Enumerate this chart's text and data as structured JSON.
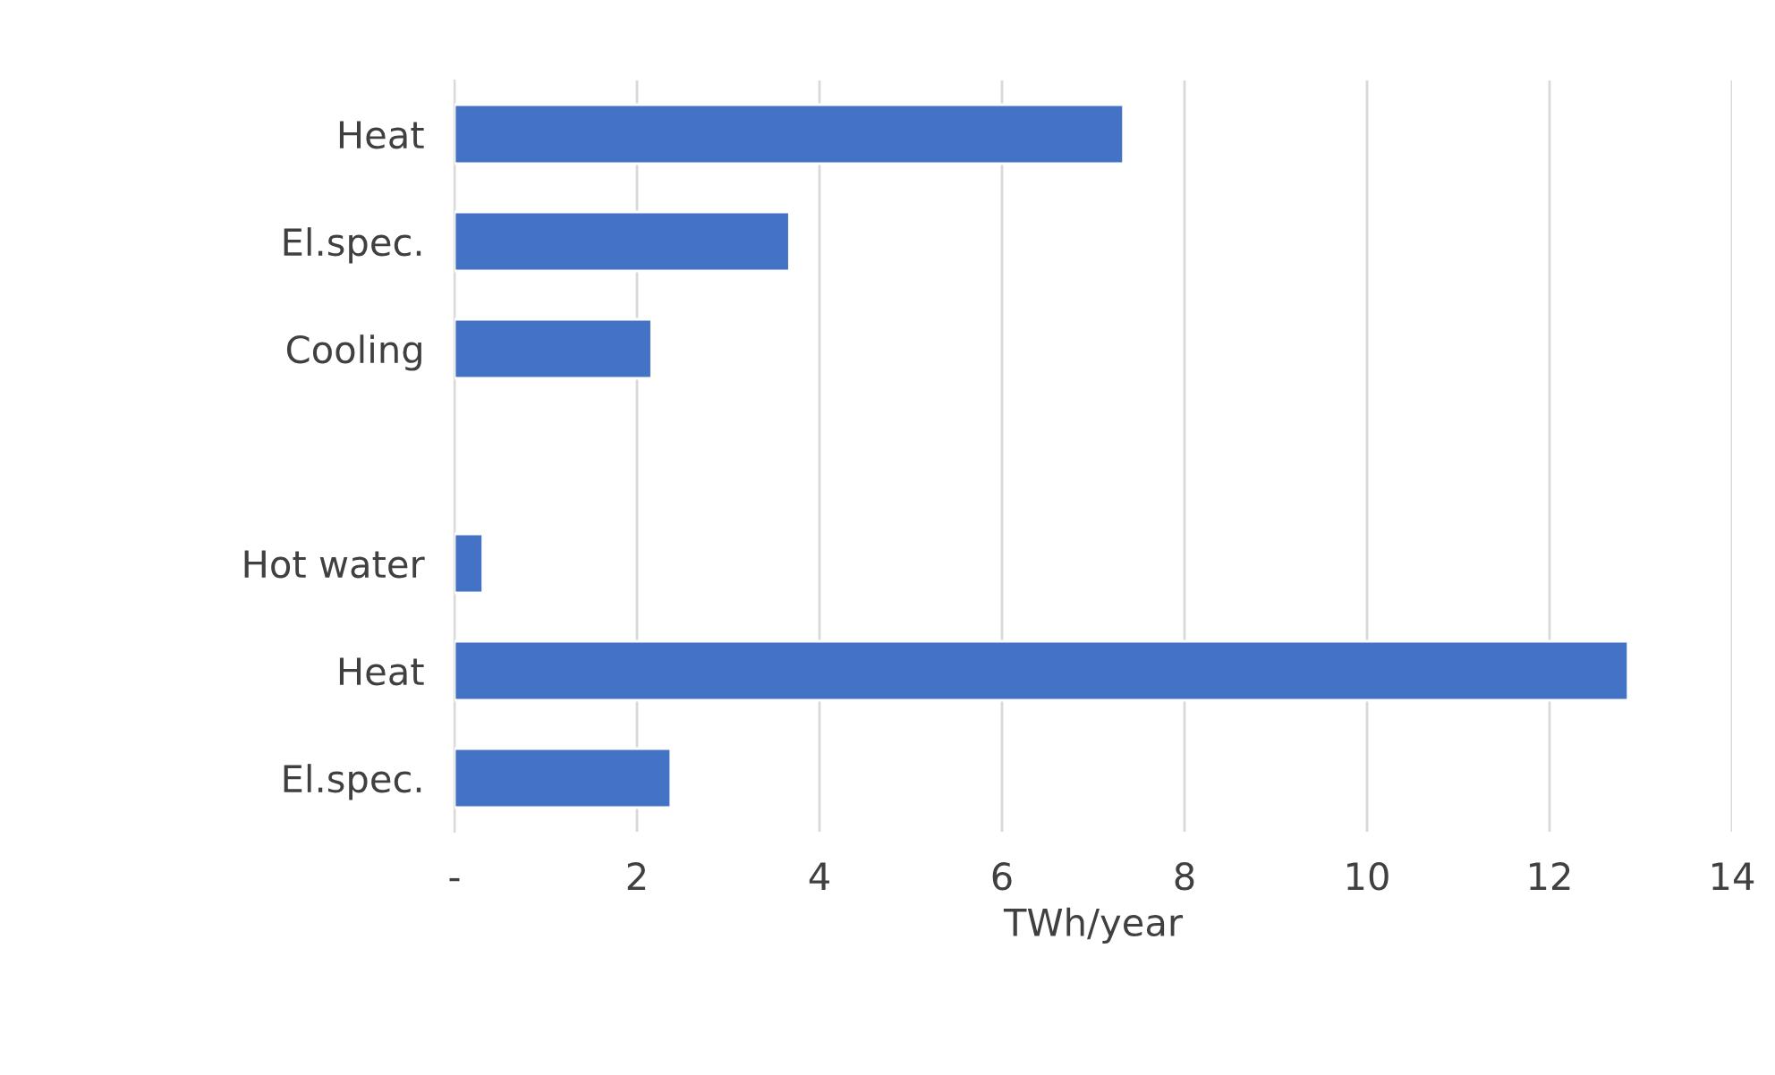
{
  "chart_data": {
    "type": "bar",
    "orientation": "horizontal",
    "xlabel": "TWh/year",
    "categories": [
      "Heat",
      "El.spec.",
      "Cooling",
      null,
      "Hot water",
      "Heat",
      "El.spec."
    ],
    "values": [
      7.33,
      3.67,
      2.16,
      null,
      0.31,
      12.86,
      2.37
    ],
    "color": "#4472c4",
    "xlim": [
      0,
      14
    ],
    "xticks": [
      {
        "value": 0,
        "label": "-"
      },
      2,
      4,
      6,
      8,
      10,
      12,
      14
    ],
    "grid": "x",
    "legend": false
  }
}
